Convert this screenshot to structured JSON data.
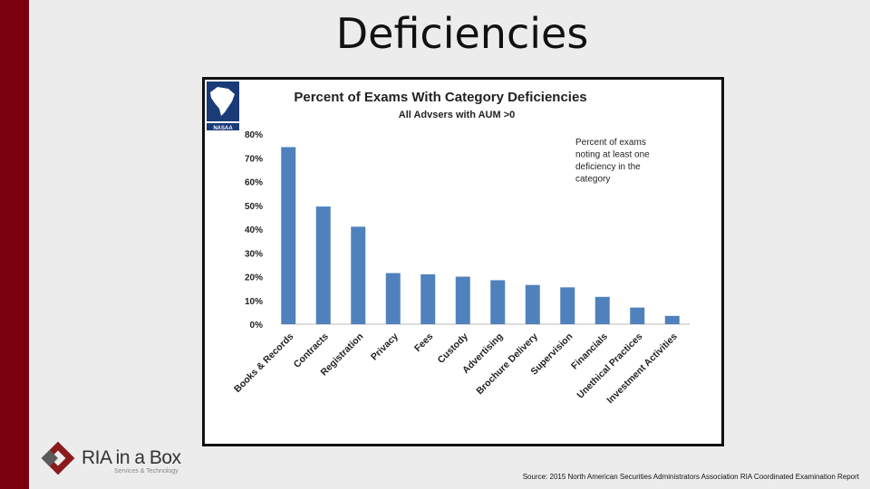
{
  "slide": {
    "title": "Deficiencies",
    "source": "Source: 2015 North American Securities Administrators Association RIA Coordinated Examination Report",
    "logo_name": "RIA in a Box",
    "logo_tagline": "Services & Technology"
  },
  "colors": {
    "bar": "#4f81bd",
    "accent": "#7a0010"
  },
  "chart_data": {
    "type": "bar",
    "title": "Percent of Exams With Category Deficiencies",
    "subtitle": "All Advsers with AUM >0",
    "annotation": [
      "Percent of exams",
      "noting at least one",
      "deficiency in the",
      "category"
    ],
    "categories": [
      "Books & Records",
      "Contracts",
      "Registration",
      "Privacy",
      "Fees",
      "Custody",
      "Advertising",
      "Brochure Delivery",
      "Supervision",
      "Financials",
      "Unethical Practices",
      "Investment Activities"
    ],
    "values": [
      74.5,
      49.5,
      41,
      21.5,
      21,
      20,
      18.5,
      16.5,
      15.5,
      11.5,
      7,
      3.5
    ],
    "yticks": [
      0,
      10,
      20,
      30,
      40,
      50,
      60,
      70,
      80
    ],
    "ytick_labels": [
      "0%",
      "10%",
      "20%",
      "30%",
      "40%",
      "50%",
      "60%",
      "70%",
      "80%"
    ],
    "ylim": [
      0,
      80
    ],
    "xlabel": "",
    "ylabel": "",
    "grid": false,
    "legend": "none"
  }
}
